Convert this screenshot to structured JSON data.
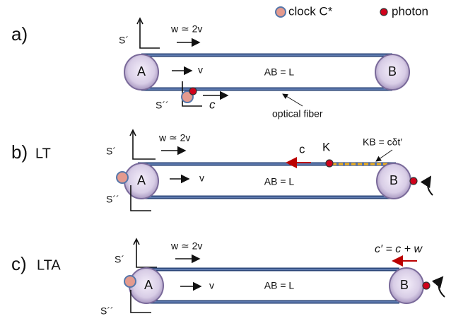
{
  "legend": {
    "clock": "clock C*",
    "photon": "photon"
  },
  "panels": [
    {
      "label": "a)",
      "frame_top": "S´",
      "velocity": "w ≃ 2v",
      "a": "A",
      "v": "v",
      "ab": "AB = L",
      "b": "B",
      "frame_bottom": "S´´",
      "c": "c",
      "fiber": "optical fiber"
    },
    {
      "label": "b)",
      "tag": "LT",
      "frame_top": "S´",
      "velocity": "w ≃ 2v",
      "c": "c",
      "k": "K",
      "kb": "KB = cδt′",
      "a": "A",
      "v": "v",
      "ab": "AB = L",
      "b": "B",
      "frame_bottom": "S´´"
    },
    {
      "label": "c)",
      "tag": "LTA",
      "frame_top": "S´",
      "velocity": "w ≃ 2v",
      "c_prime": "c′ = c + w",
      "a": "A",
      "v": "v",
      "ab": "AB = L",
      "b": "B",
      "frame_bottom": "S´´"
    }
  ]
}
